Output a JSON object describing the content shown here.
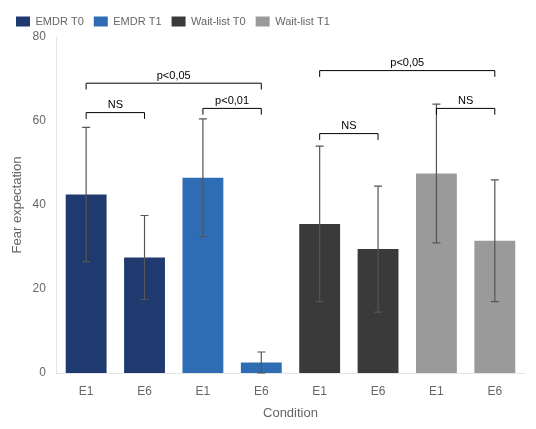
{
  "chart_data": {
    "type": "bar",
    "categories": [
      "E1",
      "E6",
      "E1",
      "E6",
      "E1",
      "E6",
      "E1",
      "E6"
    ],
    "series": [
      {
        "name": "EMDR T0",
        "color": "#1e3a6e",
        "values": [
          42.5,
          27.5,
          null,
          null,
          null,
          null,
          null,
          null
        ],
        "errors": [
          16.0,
          10.0,
          null,
          null,
          null,
          null,
          null,
          null
        ]
      },
      {
        "name": "EMDR T1",
        "color": "#2e6db4",
        "values": [
          null,
          null,
          46.5,
          2.5,
          null,
          null,
          null,
          null
        ],
        "errors": [
          null,
          null,
          14.0,
          2.5,
          null,
          null,
          null,
          null
        ]
      },
      {
        "name": "Wait-list T0",
        "color": "#3a3a3a",
        "values": [
          null,
          null,
          null,
          null,
          35.5,
          29.5,
          null,
          null
        ],
        "errors": [
          null,
          null,
          null,
          null,
          18.5,
          15.0,
          null,
          null
        ]
      },
      {
        "name": "Wait-list T1",
        "color": "#9a9a9a",
        "values": [
          null,
          null,
          null,
          null,
          null,
          null,
          47.5,
          31.5
        ],
        "errors": [
          null,
          null,
          null,
          null,
          null,
          null,
          16.5,
          14.5
        ]
      }
    ],
    "xlabel": "Condition",
    "ylabel": "Fear expectation",
    "ylim": [
      0,
      80
    ],
    "yticks": [
      0,
      20,
      40,
      60,
      80
    ],
    "grid": false,
    "legend": "upper left",
    "annotations": [
      {
        "x1": 0,
        "x2": 1,
        "y": 62,
        "tick": 1.5,
        "label": "NS"
      },
      {
        "x1": 2,
        "x2": 3,
        "y": 63,
        "tick": 1.5,
        "label": "p<0,01"
      },
      {
        "x1": 0,
        "x2": 3,
        "y": 69,
        "tick": 1.5,
        "label": "p<0,05"
      },
      {
        "x1": 4,
        "x2": 5,
        "y": 57,
        "tick": 1.5,
        "label": "NS"
      },
      {
        "x1": 6,
        "x2": 7,
        "y": 63,
        "tick": 1.5,
        "label": "NS"
      },
      {
        "x1": 4,
        "x2": 7,
        "y": 72,
        "tick": 1.5,
        "label": "p<0,05"
      }
    ]
  }
}
